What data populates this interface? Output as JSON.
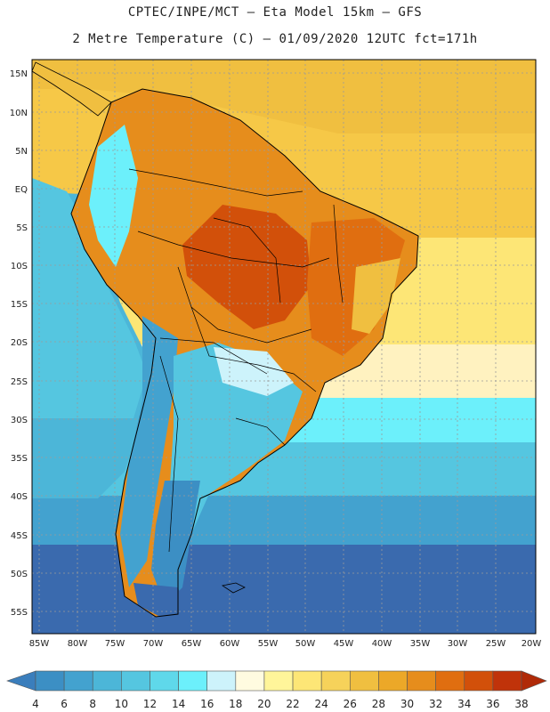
{
  "title_line1": "CPTEC/INPE/MCT —  Eta Model 15km — GFS",
  "title_line2": "2 Metre Temperature (C) — 01/09/2020 12UTC fct=171h",
  "lat_labels": [
    "15N",
    "10N",
    "5N",
    "EQ",
    "5S",
    "10S",
    "15S",
    "20S",
    "25S",
    "30S",
    "35S",
    "40S",
    "45S",
    "50S",
    "55S"
  ],
  "lon_labels": [
    "85W",
    "80W",
    "75W",
    "70W",
    "65W",
    "60W",
    "55W",
    "50W",
    "45W",
    "40W",
    "35W",
    "30W",
    "25W",
    "20W"
  ],
  "colorbar": {
    "labels": [
      "4",
      "6",
      "8",
      "10",
      "12",
      "14",
      "16",
      "18",
      "20",
      "22",
      "24",
      "26",
      "28",
      "30",
      "32",
      "34",
      "36",
      "38"
    ],
    "colors": [
      "#3a7ebc",
      "#3c8fc4",
      "#43a2cf",
      "#4cb6d8",
      "#55c6e0",
      "#5fd8ea",
      "#6cf0fb",
      "#cdf3fb",
      "#fffbe0",
      "#fff59a",
      "#fde676",
      "#f6d25a",
      "#f0bf40",
      "#eca828",
      "#e68d1c",
      "#e06e10",
      "#d2500a",
      "#c0330a",
      "#b02a08"
    ]
  },
  "map_regions": {
    "ocean_tropical": "#f6c847",
    "ocean_south_atl_warm": "#fde676",
    "ocean_cool_band": "#5fd8ea",
    "ocean_pacific_mid": "#4cb6d8",
    "ocean_deep_south": "#3a6aae",
    "land_amazon": "#e68d1c",
    "land_hot_core": "#d2500a",
    "land_andes": "#43a2cf",
    "land_patagonia": "#3c8fc4"
  }
}
